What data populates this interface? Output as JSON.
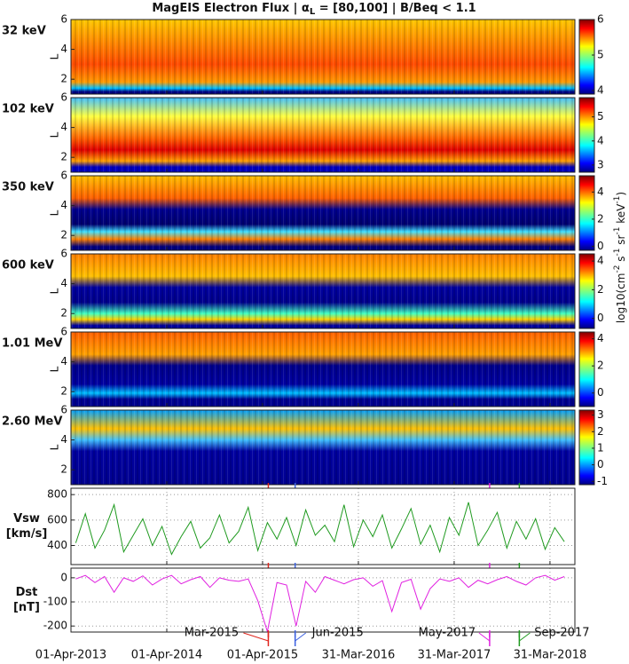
{
  "title": [
    "MagEIS Electron Flux | α",
    "L",
    " = [80,100] | B/Beq < 1.1"
  ],
  "colorbar_label": [
    "log10(cm",
    "-2",
    " s",
    "-1",
    " sr",
    "-1",
    " keV",
    "-1",
    ")"
  ],
  "chart_data": [
    {
      "type": "heatmap",
      "label": "32 keV",
      "label_color": "#f28a1e",
      "ylabel": "L",
      "ylim": [
        1,
        6
      ],
      "yticks": [
        2,
        4,
        6
      ],
      "clim": [
        3.9,
        6
      ],
      "cticks": [
        4,
        5,
        6
      ]
    },
    {
      "type": "heatmap",
      "label": "102 keV",
      "label_color": "#f28a1e",
      "ylabel": "L",
      "ylim": [
        1,
        6
      ],
      "yticks": [
        2,
        4,
        6
      ],
      "clim": [
        2.7,
        5.8
      ],
      "cticks": [
        3,
        4,
        5
      ]
    },
    {
      "type": "heatmap",
      "label": "350 keV",
      "label_color": "#1a2fd0",
      "ylabel": "L",
      "ylim": [
        1,
        6
      ],
      "yticks": [
        2,
        4,
        6
      ],
      "clim": [
        -0.3,
        5.2
      ],
      "cticks": [
        0,
        2,
        4
      ]
    },
    {
      "type": "heatmap",
      "label": "600 keV",
      "label_color": "#1a2fd0",
      "ylabel": "L",
      "ylim": [
        1,
        6
      ],
      "yticks": [
        2,
        4,
        6
      ],
      "clim": [
        -0.7,
        4.5
      ],
      "cticks": [
        0,
        2,
        4
      ]
    },
    {
      "type": "heatmap",
      "label": "1.01 MeV",
      "label_color": "#e0261e",
      "ylabel": "L",
      "ylim": [
        1,
        6
      ],
      "yticks": [
        2,
        4,
        6
      ],
      "clim": [
        -1,
        4.5
      ],
      "cticks": [
        0,
        2,
        4
      ]
    },
    {
      "type": "heatmap",
      "label": "2.60 MeV",
      "label_color": "#e0261e",
      "ylabel": "L",
      "ylim": [
        1,
        6
      ],
      "yticks": [
        2,
        4,
        6
      ],
      "clim": [
        -1.2,
        3.3
      ],
      "cticks": [
        -1,
        0,
        1,
        2,
        3
      ]
    },
    {
      "type": "line",
      "ylabel": [
        "Vsw",
        "[km/s]"
      ],
      "color": "#1f9a1f",
      "ylim": [
        250,
        850
      ],
      "yticks": [
        400,
        600,
        800
      ],
      "x": [
        2013.3,
        2013.4,
        2013.5,
        2013.6,
        2013.7,
        2013.8,
        2013.9,
        2014.0,
        2014.1,
        2014.2,
        2014.3,
        2014.4,
        2014.5,
        2014.6,
        2014.7,
        2014.8,
        2014.9,
        2015.0,
        2015.1,
        2015.2,
        2015.3,
        2015.4,
        2015.5,
        2015.6,
        2015.7,
        2015.8,
        2015.9,
        2016.0,
        2016.1,
        2016.2,
        2016.3,
        2016.4,
        2016.5,
        2016.6,
        2016.7,
        2016.8,
        2016.9,
        2017.0,
        2017.1,
        2017.2,
        2017.3,
        2017.4,
        2017.5,
        2017.6,
        2017.7,
        2017.8,
        2017.9,
        2018.0,
        2018.1,
        2018.2,
        2018.3,
        2018.4
      ],
      "values": [
        420,
        650,
        380,
        520,
        720,
        350,
        480,
        610,
        400,
        550,
        330,
        470,
        590,
        380,
        460,
        640,
        420,
        510,
        700,
        360,
        580,
        450,
        620,
        400,
        680,
        480,
        560,
        430,
        720,
        390,
        600,
        470,
        640,
        380,
        530,
        690,
        410,
        560,
        350,
        620,
        480,
        740,
        400,
        520,
        660,
        380,
        590,
        450,
        610,
        370,
        540,
        430
      ]
    },
    {
      "type": "line",
      "ylabel": [
        "Dst",
        "[nT]"
      ],
      "color": "#e020e0",
      "ylim": [
        -225,
        40
      ],
      "yticks": [
        0,
        -100,
        -200
      ],
      "x": [
        2013.3,
        2013.4,
        2013.5,
        2013.6,
        2013.7,
        2013.8,
        2013.9,
        2014.0,
        2014.1,
        2014.2,
        2014.3,
        2014.4,
        2014.5,
        2014.6,
        2014.7,
        2014.8,
        2014.9,
        2015.0,
        2015.1,
        2015.2,
        2015.3,
        2015.4,
        2015.5,
        2015.6,
        2015.7,
        2015.8,
        2015.9,
        2016.0,
        2016.1,
        2016.2,
        2016.3,
        2016.4,
        2016.5,
        2016.6,
        2016.7,
        2016.8,
        2016.9,
        2017.0,
        2017.1,
        2017.2,
        2017.3,
        2017.4,
        2017.5,
        2017.6,
        2017.7,
        2017.8,
        2017.9,
        2018.0,
        2018.1,
        2018.2,
        2018.3,
        2018.4
      ],
      "values": [
        -5,
        10,
        -20,
        5,
        -60,
        0,
        -15,
        8,
        -30,
        -5,
        10,
        -25,
        -8,
        5,
        -40,
        0,
        -10,
        -15,
        -5,
        -95,
        -223,
        -20,
        -30,
        -200,
        -15,
        -60,
        5,
        -10,
        -25,
        -8,
        0,
        -35,
        -12,
        -140,
        -20,
        -6,
        -130,
        -45,
        -5,
        -15,
        0,
        -40,
        -10,
        -25,
        -8,
        5,
        -15,
        -30,
        0,
        10,
        -10,
        5
      ],
      "xlim": [
        2013.25,
        2018.51
      ],
      "xticks": [
        {
          "value": 2013.25,
          "label": "01-Apr-2013"
        },
        {
          "value": 2014.25,
          "label": "01-Apr-2014"
        },
        {
          "value": 2015.25,
          "label": "01-Apr-2015"
        },
        {
          "value": 2016.25,
          "label": "31-Mar-2016"
        },
        {
          "value": 2017.25,
          "label": "31-Mar-2017"
        },
        {
          "value": 2018.25,
          "label": "31-Mar-2018"
        }
      ],
      "annotations": [
        {
          "label": "Mar-2015",
          "x": 2015.31,
          "color": "#e0261e"
        },
        {
          "label": "Jun-2015",
          "x": 2015.59,
          "color": "#3a5fe0"
        },
        {
          "label": "May-2017",
          "x": 2017.62,
          "color": "#e020e0"
        },
        {
          "label": "Sep-2017",
          "x": 2017.93,
          "color": "#1f9a1f"
        }
      ]
    }
  ]
}
